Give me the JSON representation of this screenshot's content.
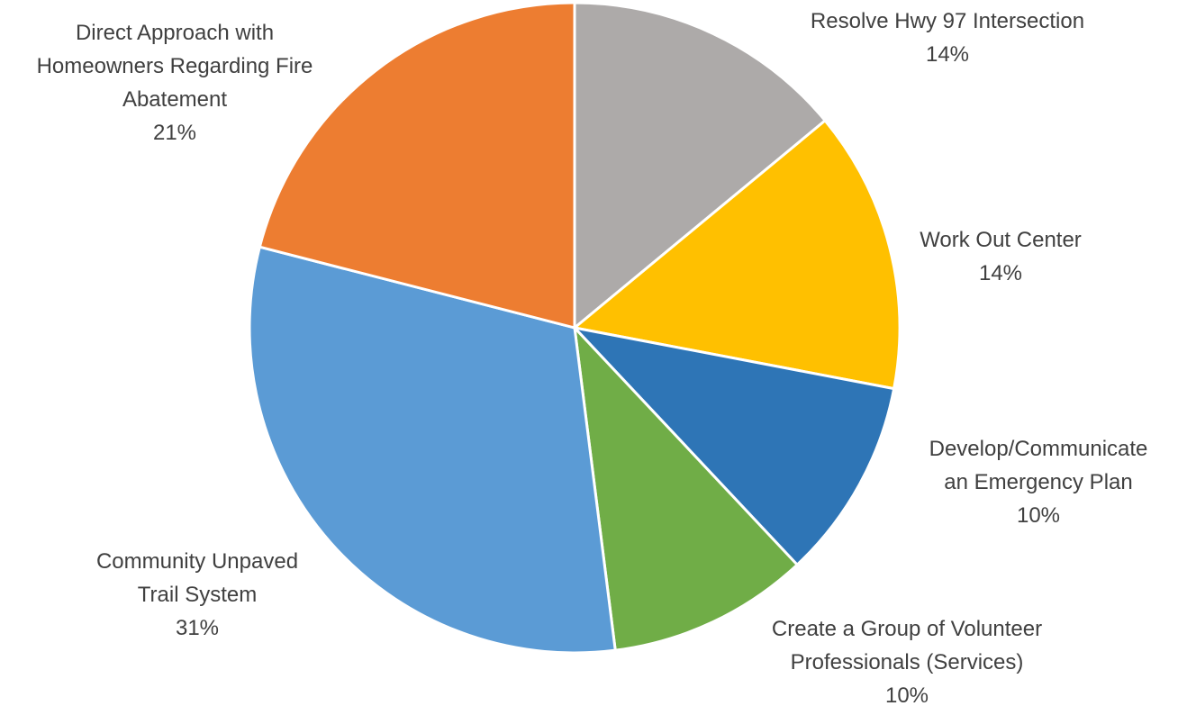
{
  "chart_data": {
    "type": "pie",
    "title": "",
    "slices": [
      {
        "label": [
          "Resolve Hwy 97 Intersection"
        ],
        "pct_label": "14%",
        "value": 14,
        "color": "#ADAAA9"
      },
      {
        "label": [
          "Work Out Center"
        ],
        "pct_label": "14%",
        "value": 14,
        "color": "#FFC000"
      },
      {
        "label": [
          "Develop/Communicate",
          "an Emergency Plan"
        ],
        "pct_label": "10%",
        "value": 10,
        "color": "#2E75B6"
      },
      {
        "label": [
          "Create a Group of Volunteer",
          "Professionals (Services)"
        ],
        "pct_label": "10%",
        "value": 10,
        "color": "#70AD47"
      },
      {
        "label": [
          "Community Unpaved",
          "Trail System"
        ],
        "pct_label": "31%",
        "value": 31,
        "color": "#5B9BD5"
      },
      {
        "label": [
          "Direct Approach with",
          "Homeowners Regarding Fire",
          "Abatement"
        ],
        "pct_label": "21%",
        "value": 21,
        "color": "#ED7D31"
      }
    ]
  }
}
